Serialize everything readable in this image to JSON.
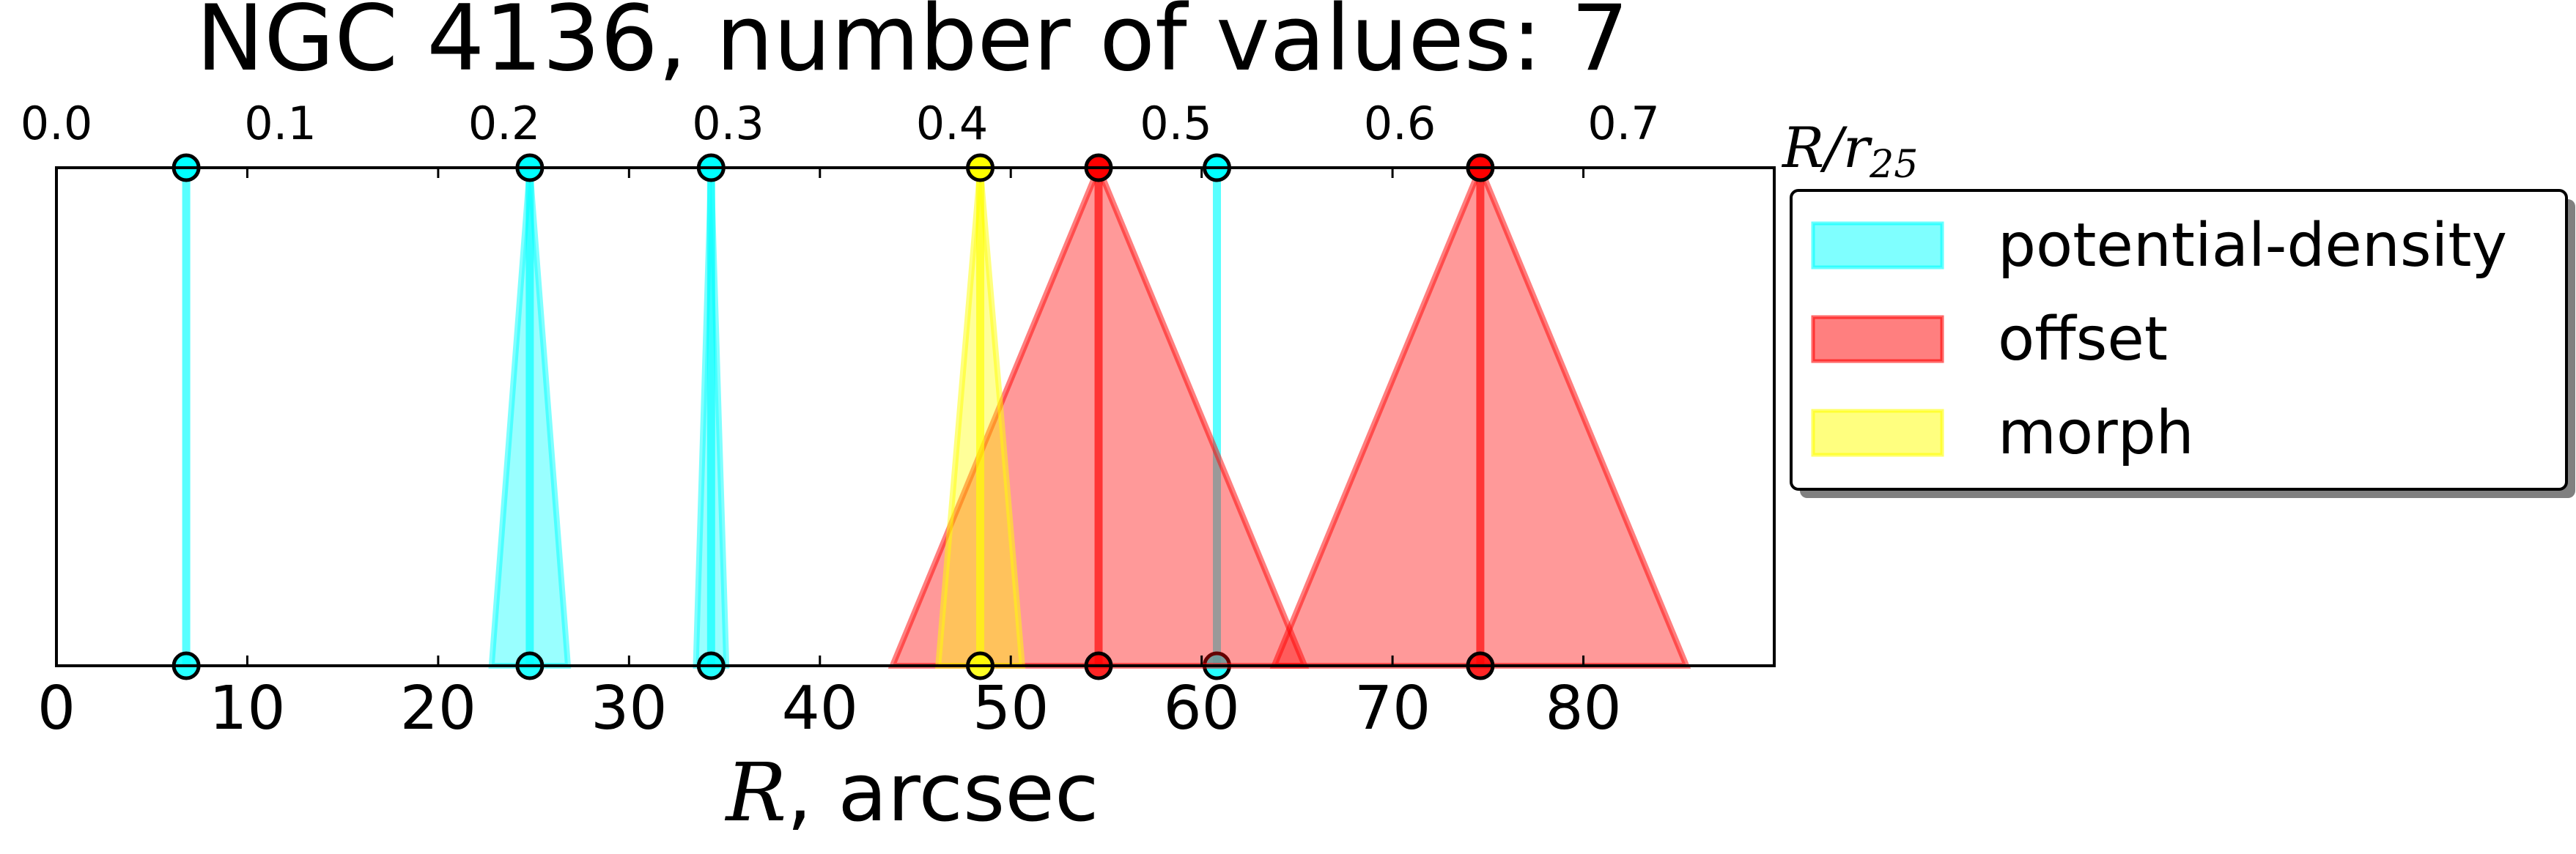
{
  "chart_data": {
    "type": "radial-ranges",
    "title": "NGC 4136, number of values: 7",
    "xlabel_symbol": "R",
    "xlabel_rest": ", arcsec",
    "top_axis_label_main": "R/r",
    "top_axis_label_sub": "25",
    "xlim": [
      0,
      90
    ],
    "bottom_ticks": [
      0,
      10,
      20,
      30,
      40,
      50,
      60,
      70,
      80
    ],
    "top_ticks": [
      "0.0",
      "0.1",
      "0.2",
      "0.3",
      "0.4",
      "0.5",
      "0.6",
      "0.7"
    ],
    "top_tick_scale_arcsec_per_unit": 117.3,
    "legend": {
      "placement": "right-outside-top",
      "entries": [
        {
          "label": "potential-density",
          "color": "#00ffff"
        },
        {
          "label": "offset",
          "color": "#ff0000"
        },
        {
          "label": "morph",
          "color": "#ffff00"
        }
      ]
    },
    "series": [
      {
        "name": "potential-density",
        "color": "#00ffff",
        "points": [
          {
            "r": 6.8,
            "err": 0
          },
          {
            "r": 24.8,
            "err": 2.0
          },
          {
            "r": 34.3,
            "err": 0.8
          },
          {
            "r": 60.8,
            "err": 0
          }
        ]
      },
      {
        "name": "offset",
        "color": "#ff0000",
        "points": [
          {
            "r": 54.6,
            "err": 10.8
          },
          {
            "r": 74.6,
            "err": 10.8
          }
        ]
      },
      {
        "name": "morph",
        "color": "#ffff00",
        "points": [
          {
            "r": 48.4,
            "err": 2.2
          }
        ]
      }
    ]
  }
}
